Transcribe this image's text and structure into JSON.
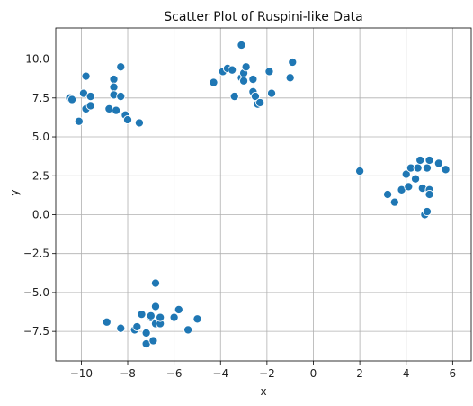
{
  "chart_data": {
    "type": "scatter",
    "title": "Scatter Plot of Ruspini-like Data",
    "xlabel": "x",
    "ylabel": "y",
    "xlim": [
      -11.1,
      6.8
    ],
    "ylim": [
      -9.4,
      12.0
    ],
    "x_ticks": [
      -10,
      -8,
      -6,
      -4,
      -2,
      0,
      2,
      4,
      6
    ],
    "y_ticks": [
      -7.5,
      -5.0,
      -2.5,
      0.0,
      2.5,
      5.0,
      7.5,
      10.0
    ],
    "x_tick_labels": [
      "−10",
      "−8",
      "−6",
      "−4",
      "−2",
      "0",
      "2",
      "4",
      "6"
    ],
    "y_tick_labels": [
      "−7.5",
      "−5.0",
      "−2.5",
      "0.0",
      "2.5",
      "5.0",
      "7.5",
      "10.0"
    ],
    "grid": true,
    "marker_color": "#1f77b4",
    "marker_edge_color": "#ffffff",
    "points": [
      {
        "x": -10.5,
        "y": 7.5
      },
      {
        "x": -10.4,
        "y": 7.4
      },
      {
        "x": -10.1,
        "y": 6.0
      },
      {
        "x": -9.9,
        "y": 7.8
      },
      {
        "x": -9.8,
        "y": 8.9
      },
      {
        "x": -9.8,
        "y": 6.8
      },
      {
        "x": -9.6,
        "y": 7.0
      },
      {
        "x": -9.6,
        "y": 7.6
      },
      {
        "x": -8.8,
        "y": 6.8
      },
      {
        "x": -8.6,
        "y": 8.7
      },
      {
        "x": -8.6,
        "y": 8.2
      },
      {
        "x": -8.6,
        "y": 7.7
      },
      {
        "x": -8.5,
        "y": 6.7
      },
      {
        "x": -8.3,
        "y": 9.5
      },
      {
        "x": -8.3,
        "y": 7.6
      },
      {
        "x": -8.1,
        "y": 6.4
      },
      {
        "x": -8.0,
        "y": 6.1
      },
      {
        "x": -7.5,
        "y": 5.9
      },
      {
        "x": -4.3,
        "y": 8.5
      },
      {
        "x": -3.9,
        "y": 9.2
      },
      {
        "x": -3.7,
        "y": 9.4
      },
      {
        "x": -3.5,
        "y": 9.3
      },
      {
        "x": -3.4,
        "y": 7.6
      },
      {
        "x": -3.1,
        "y": 10.9
      },
      {
        "x": -3.1,
        "y": 8.8
      },
      {
        "x": -3.0,
        "y": 9.1
      },
      {
        "x": -3.0,
        "y": 8.6
      },
      {
        "x": -2.9,
        "y": 9.5
      },
      {
        "x": -2.6,
        "y": 8.7
      },
      {
        "x": -2.6,
        "y": 7.9
      },
      {
        "x": -2.5,
        "y": 7.6
      },
      {
        "x": -2.4,
        "y": 7.1
      },
      {
        "x": -2.3,
        "y": 7.2
      },
      {
        "x": -1.9,
        "y": 9.2
      },
      {
        "x": -1.8,
        "y": 7.8
      },
      {
        "x": -1.0,
        "y": 8.8
      },
      {
        "x": -0.9,
        "y": 9.8
      },
      {
        "x": 2.0,
        "y": 2.8
      },
      {
        "x": 3.2,
        "y": 1.3
      },
      {
        "x": 3.5,
        "y": 0.8
      },
      {
        "x": 3.8,
        "y": 1.6
      },
      {
        "x": 4.0,
        "y": 2.6
      },
      {
        "x": 4.1,
        "y": 1.8
      },
      {
        "x": 4.2,
        "y": 3.0
      },
      {
        "x": 4.4,
        "y": 2.3
      },
      {
        "x": 4.5,
        "y": 3.0
      },
      {
        "x": 4.6,
        "y": 3.5
      },
      {
        "x": 4.7,
        "y": 1.7
      },
      {
        "x": 4.8,
        "y": 0.0
      },
      {
        "x": 4.9,
        "y": 3.0
      },
      {
        "x": 5.0,
        "y": 3.5
      },
      {
        "x": 5.0,
        "y": 1.6
      },
      {
        "x": 5.0,
        "y": 1.3
      },
      {
        "x": 4.9,
        "y": 0.2
      },
      {
        "x": 5.4,
        "y": 3.3
      },
      {
        "x": 5.7,
        "y": 2.9
      },
      {
        "x": -8.9,
        "y": -6.9
      },
      {
        "x": -8.3,
        "y": -7.3
      },
      {
        "x": -7.7,
        "y": -7.4
      },
      {
        "x": -7.6,
        "y": -7.2
      },
      {
        "x": -7.4,
        "y": -6.4
      },
      {
        "x": -7.2,
        "y": -7.6
      },
      {
        "x": -7.2,
        "y": -8.3
      },
      {
        "x": -7.0,
        "y": -6.6
      },
      {
        "x": -7.0,
        "y": -6.5
      },
      {
        "x": -6.9,
        "y": -8.1
      },
      {
        "x": -6.8,
        "y": -7.0
      },
      {
        "x": -6.8,
        "y": -4.4
      },
      {
        "x": -6.8,
        "y": -5.9
      },
      {
        "x": -6.6,
        "y": -7.0
      },
      {
        "x": -6.6,
        "y": -6.6
      },
      {
        "x": -6.0,
        "y": -6.6
      },
      {
        "x": -5.8,
        "y": -6.1
      },
      {
        "x": -5.4,
        "y": -7.4
      },
      {
        "x": -5.0,
        "y": -6.7
      }
    ]
  }
}
